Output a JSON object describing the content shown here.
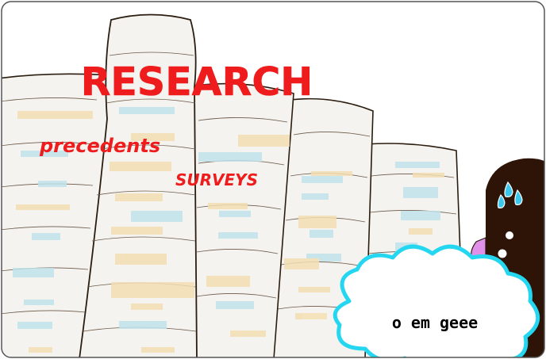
{
  "panel": {
    "title": "RESEARCH",
    "label_precedents": "precedents",
    "label_surveys": "SURVEYS"
  },
  "character": {
    "speech": "o em geee",
    "icons": [
      "sweat-drop-icon",
      "eye-icon"
    ]
  },
  "colors": {
    "title_red": "#ee1c1c",
    "paper": "#f5f3ef",
    "outline": "#2b1d10",
    "highlight_yellow": "#f3dfb4",
    "highlight_blue": "#bfe3ea",
    "bubble_cyan": "#25d6f0",
    "character_brown": "#2d1406",
    "drop_blue": "#3cc8ee",
    "pink": "#e090e8"
  }
}
